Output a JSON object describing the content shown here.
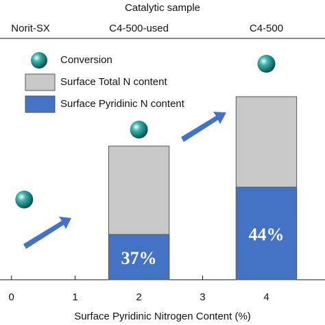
{
  "chart_data": {
    "type": "bar",
    "top_axis_label": "Catalytic sample",
    "top_xticks": [
      {
        "value": 0.3,
        "label": "Norit-SX"
      },
      {
        "value": 2,
        "label": "C4-500-used"
      },
      {
        "value": 4,
        "label": "C4-500"
      }
    ],
    "xlabel": "Surface Pyridinic  Nitrogen Content (%)",
    "xlim": [
      -0.18,
      4.92
    ],
    "xticks": [
      0,
      1,
      2,
      3,
      4
    ],
    "ylim": [
      0,
      110
    ],
    "series": [
      {
        "name": "Conversion",
        "type": "scatter",
        "color": "#1a8f8c",
        "x": [
          0.2,
          2,
          4
        ],
        "values": [
          39,
          73,
          105
        ]
      },
      {
        "name": "Surface Total N content",
        "type": "bar",
        "color": "#c8c8c8",
        "x": [
          2,
          4
        ],
        "values": [
          65,
          89
        ]
      },
      {
        "name": "Surface Pyridinic N content",
        "type": "bar",
        "color": "#4472c4",
        "x": [
          2,
          4
        ],
        "values": [
          22,
          45
        ]
      }
    ],
    "bar_labels": [
      "37%",
      "44%"
    ]
  }
}
